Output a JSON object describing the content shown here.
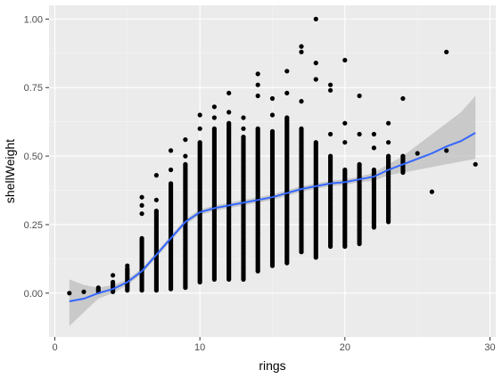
{
  "chart_data": {
    "type": "scatter",
    "title": "",
    "xlabel": "rings",
    "ylabel": "shellWeight",
    "xlim": [
      -0.4,
      30.4
    ],
    "ylim": [
      -0.16,
      1.05
    ],
    "x_ticks": [
      0,
      10,
      20,
      30
    ],
    "x_tick_labels": [
      "0",
      "10",
      "20",
      "30"
    ],
    "y_ticks": [
      0.0,
      0.25,
      0.5,
      0.75,
      1.0
    ],
    "y_tick_labels": [
      "0.00",
      "0.25",
      "0.50",
      "0.75",
      "1.00"
    ],
    "grid": true,
    "legend": "none",
    "colors": {
      "panel_background": "#ebebeb",
      "grid_major": "#ffffff",
      "grid_minor": "#f5f5f5",
      "points": "#000000",
      "smooth_line": "#3366ff",
      "confidence_band": "#bdbdbd"
    },
    "columns": [
      {
        "x": 1,
        "ymin": 0.0,
        "ymax": 0.0,
        "extras": []
      },
      {
        "x": 2,
        "ymin": 0.005,
        "ymax": 0.005,
        "extras": []
      },
      {
        "x": 3,
        "ymin": 0.005,
        "ymax": 0.02,
        "extras": []
      },
      {
        "x": 4,
        "ymin": 0.005,
        "ymax": 0.04,
        "extras": [
          0.065
        ]
      },
      {
        "x": 5,
        "ymin": 0.01,
        "ymax": 0.09,
        "extras": [
          0.1
        ]
      },
      {
        "x": 6,
        "ymin": 0.01,
        "ymax": 0.2,
        "extras": [
          0.29,
          0.32,
          0.35
        ]
      },
      {
        "x": 7,
        "ymin": 0.01,
        "ymax": 0.3,
        "extras": [
          0.34,
          0.43
        ]
      },
      {
        "x": 8,
        "ymin": 0.015,
        "ymax": 0.4,
        "extras": [
          0.45,
          0.52
        ]
      },
      {
        "x": 9,
        "ymin": 0.02,
        "ymax": 0.47,
        "extras": [
          0.5,
          0.56
        ]
      },
      {
        "x": 10,
        "ymin": 0.04,
        "ymax": 0.55,
        "extras": [
          0.6,
          0.65
        ]
      },
      {
        "x": 11,
        "ymin": 0.05,
        "ymax": 0.6,
        "extras": [
          0.64,
          0.68
        ]
      },
      {
        "x": 12,
        "ymin": 0.05,
        "ymax": 0.62,
        "extras": [
          0.66,
          0.73
        ]
      },
      {
        "x": 13,
        "ymin": 0.05,
        "ymax": 0.57,
        "extras": [
          0.6,
          0.64
        ]
      },
      {
        "x": 14,
        "ymin": 0.08,
        "ymax": 0.6,
        "extras": [
          0.72,
          0.76,
          0.8
        ]
      },
      {
        "x": 15,
        "ymin": 0.1,
        "ymax": 0.59,
        "extras": [
          0.65,
          0.71
        ]
      },
      {
        "x": 16,
        "ymin": 0.11,
        "ymax": 0.64,
        "extras": [
          0.73,
          0.81
        ]
      },
      {
        "x": 17,
        "ymin": 0.15,
        "ymax": 0.6,
        "extras": [
          0.7,
          0.88,
          0.9
        ]
      },
      {
        "x": 18,
        "ymin": 0.13,
        "ymax": 0.55,
        "extras": [
          0.78,
          0.84,
          1.0
        ]
      },
      {
        "x": 19,
        "ymin": 0.17,
        "ymax": 0.5,
        "extras": [
          0.58,
          0.74,
          0.76
        ]
      },
      {
        "x": 20,
        "ymin": 0.17,
        "ymax": 0.45,
        "extras": [
          0.55,
          0.62,
          0.85
        ]
      },
      {
        "x": 21,
        "ymin": 0.18,
        "ymax": 0.47,
        "extras": [
          0.58,
          0.72,
          0.26
        ]
      },
      {
        "x": 22,
        "ymin": 0.24,
        "ymax": 0.45,
        "extras": [
          0.26,
          0.53,
          0.58
        ]
      },
      {
        "x": 23,
        "ymin": 0.26,
        "ymax": 0.5,
        "extras": [
          0.55,
          0.62
        ]
      },
      {
        "x": 24,
        "ymin": 0.44,
        "ymax": 0.5,
        "extras": [
          0.71
        ]
      },
      {
        "x": 25,
        "ymin": 0.51,
        "ymax": 0.51,
        "extras": []
      },
      {
        "x": 26,
        "ymin": 0.37,
        "ymax": 0.37,
        "extras": []
      },
      {
        "x": 27,
        "ymin": 0.52,
        "ymax": 0.52,
        "extras": [
          0.88
        ]
      },
      {
        "x": 29,
        "ymin": 0.47,
        "ymax": 0.47,
        "extras": []
      }
    ],
    "smooth": {
      "x": [
        1,
        2,
        3,
        4,
        5,
        6,
        7,
        8,
        9,
        10,
        11,
        12,
        13,
        14,
        15,
        16,
        17,
        18,
        19,
        20,
        21,
        22,
        23,
        24,
        25,
        26,
        27,
        28,
        29
      ],
      "y": [
        -0.03,
        -0.02,
        0.0,
        0.015,
        0.04,
        0.08,
        0.14,
        0.2,
        0.26,
        0.295,
        0.31,
        0.32,
        0.33,
        0.34,
        0.35,
        0.365,
        0.38,
        0.39,
        0.4,
        0.405,
        0.415,
        0.425,
        0.45,
        0.47,
        0.49,
        0.51,
        0.535,
        0.555,
        0.585
      ],
      "lower": [
        -0.12,
        -0.07,
        -0.02,
        0.0,
        0.03,
        0.07,
        0.13,
        0.19,
        0.25,
        0.285,
        0.3,
        0.31,
        0.32,
        0.33,
        0.34,
        0.355,
        0.37,
        0.38,
        0.39,
        0.395,
        0.405,
        0.41,
        0.43,
        0.44,
        0.45,
        0.46,
        0.47,
        0.48,
        0.49
      ],
      "upper": [
        0.05,
        0.03,
        0.02,
        0.03,
        0.05,
        0.09,
        0.15,
        0.21,
        0.27,
        0.305,
        0.32,
        0.33,
        0.34,
        0.35,
        0.36,
        0.375,
        0.39,
        0.4,
        0.41,
        0.415,
        0.425,
        0.44,
        0.47,
        0.5,
        0.54,
        0.58,
        0.62,
        0.66,
        0.72
      ]
    }
  }
}
